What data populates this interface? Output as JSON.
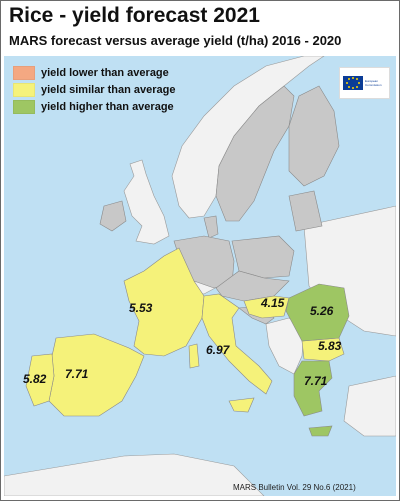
{
  "title": "Rice - yield forecast 2021",
  "subtitle": "MARS forecast versus average yield (t/ha) 2016 - 2020",
  "legend": {
    "items": [
      {
        "label": "yield lower than average",
        "color": "#f4a882"
      },
      {
        "label": "yield similar than average",
        "color": "#f5f27a"
      },
      {
        "label": "yield higher than average",
        "color": "#9ec663"
      }
    ]
  },
  "colors": {
    "sea": "#bfe0f3",
    "other_country": "#c8c8c8",
    "non_eu": "#f2f2f2",
    "similar": "#f5f27a",
    "higher": "#9ec663"
  },
  "logo": {
    "text": "European Commission"
  },
  "countries": [
    {
      "name": "France",
      "value": "5.53",
      "category": "similar"
    },
    {
      "name": "Spain",
      "value": "7.71",
      "category": "similar"
    },
    {
      "name": "Portugal",
      "value": "5.82",
      "category": "similar"
    },
    {
      "name": "Italy",
      "value": "6.97",
      "category": "similar"
    },
    {
      "name": "Hungary",
      "value": "4.15",
      "category": "similar"
    },
    {
      "name": "Romania",
      "value": "5.26",
      "category": "higher"
    },
    {
      "name": "Bulgaria",
      "value": "5.83",
      "category": "similar"
    },
    {
      "name": "Greece",
      "value": "7.71",
      "category": "higher"
    }
  ],
  "footer": "MARS Bulletin Vol. 29 No.6 (2021)"
}
